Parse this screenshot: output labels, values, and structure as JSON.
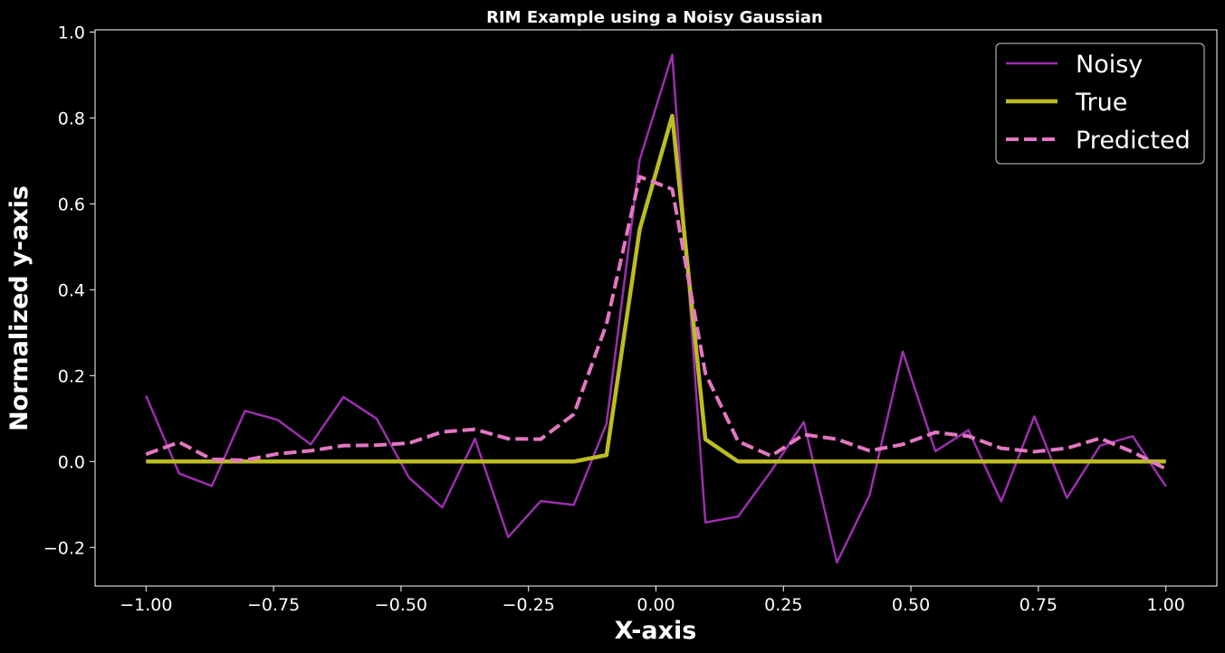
{
  "chart_data": {
    "type": "line",
    "title": "RIM Example using a Noisy Gaussian",
    "xlabel": "X-axis",
    "ylabel": "Normalized y-axis",
    "xlim": [
      -1.1,
      1.1
    ],
    "ylim": [
      -0.29,
      1.005
    ],
    "xticks": [
      -1.0,
      -0.75,
      -0.5,
      -0.25,
      0.0,
      0.25,
      0.5,
      0.75,
      1.0
    ],
    "xtick_labels": [
      "−1.00",
      "−0.75",
      "−0.50",
      "−0.25",
      "0.00",
      "0.25",
      "0.50",
      "0.75",
      "1.00"
    ],
    "yticks": [
      -0.2,
      0.0,
      0.2,
      0.4,
      0.6,
      0.8,
      1.0
    ],
    "ytick_labels": [
      "−0.2",
      "0.0",
      "0.2",
      "0.4",
      "0.6",
      "0.8",
      "1.0"
    ],
    "grid": false,
    "legend_position": "top-right",
    "x": [
      -1.0,
      -0.935,
      -0.871,
      -0.806,
      -0.742,
      -0.677,
      -0.613,
      -0.548,
      -0.484,
      -0.419,
      -0.355,
      -0.29,
      -0.226,
      -0.161,
      -0.097,
      -0.032,
      0.032,
      0.097,
      0.161,
      0.226,
      0.29,
      0.355,
      0.419,
      0.484,
      0.548,
      0.613,
      0.677,
      0.742,
      0.806,
      0.871,
      0.935,
      1.0
    ],
    "series": [
      {
        "name": "Noisy",
        "color": "#9c2fae",
        "style": "solid",
        "values": [
          0.153,
          -0.028,
          -0.057,
          0.118,
          0.097,
          0.04,
          0.15,
          0.1,
          -0.038,
          -0.107,
          0.053,
          -0.176,
          -0.092,
          -0.101,
          0.088,
          0.702,
          0.947,
          -0.142,
          -0.128,
          -0.022,
          0.092,
          -0.235,
          -0.078,
          0.256,
          0.024,
          0.073,
          -0.093,
          0.105,
          -0.085,
          0.037,
          0.059,
          -0.058
        ]
      },
      {
        "name": "True",
        "color": "#bcbd22",
        "style": "solid",
        "values": [
          0.0,
          0.0,
          0.0,
          0.0,
          0.0,
          0.0,
          0.0,
          0.0,
          0.0,
          0.0,
          0.0,
          0.0,
          0.0,
          0.0,
          0.015,
          0.54,
          0.805,
          0.052,
          0.0,
          0.0,
          0.0,
          0.0,
          0.0,
          0.0,
          0.0,
          0.0,
          0.0,
          0.0,
          0.0,
          0.0,
          0.0,
          0.0
        ]
      },
      {
        "name": "Predicted",
        "color": "#e377c2",
        "style": "dashed",
        "values": [
          0.017,
          0.045,
          0.005,
          0.003,
          0.018,
          0.025,
          0.037,
          0.038,
          0.043,
          0.069,
          0.075,
          0.053,
          0.052,
          0.11,
          0.32,
          0.663,
          0.634,
          0.205,
          0.047,
          0.013,
          0.063,
          0.052,
          0.025,
          0.04,
          0.068,
          0.059,
          0.031,
          0.023,
          0.031,
          0.054,
          0.022,
          -0.017
        ]
      }
    ]
  }
}
